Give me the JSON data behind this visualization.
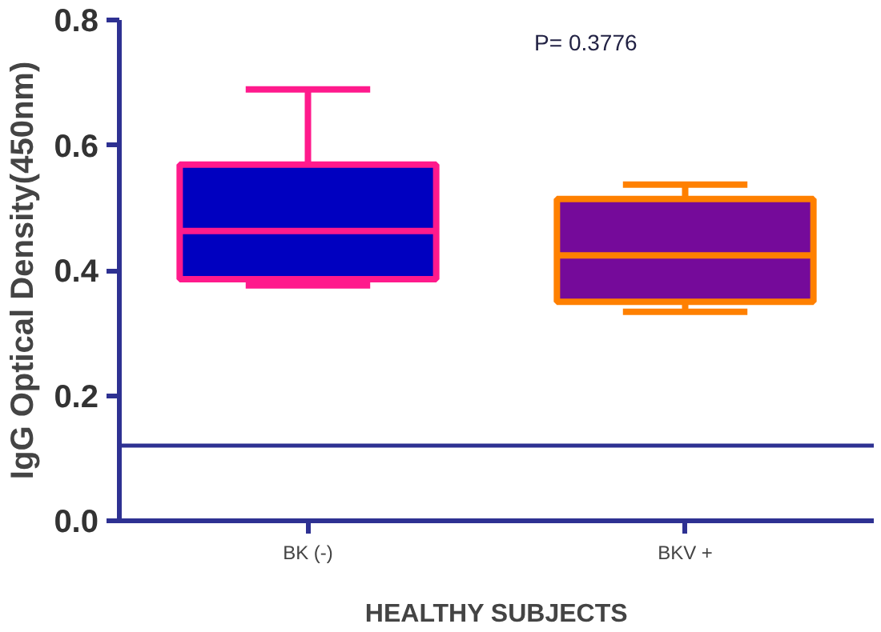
{
  "chart_data": {
    "type": "box",
    "xlabel": "HEALTHY SUBJECTS",
    "ylabel": "IgG Optical Density(450nm)",
    "categories": [
      "BK (-)",
      "BKV +"
    ],
    "series": [
      {
        "color": "#ff1a8c",
        "colors": [
          "#0000c0",
          null
        ],
        "boxes": [
          {
            "low": 0.376,
            "q1": 0.386,
            "median": 0.463,
            "q3": 0.569,
            "high": 0.689
          },
          null
        ]
      },
      {
        "color": "#ff8000",
        "colors": [
          null,
          "#750a9a"
        ],
        "boxes": [
          null,
          {
            "low": 0.334,
            "q1": 0.35,
            "median": 0.424,
            "q3": 0.514,
            "high": 0.537
          }
        ]
      }
    ],
    "ylim": [
      0,
      0.8
    ],
    "yticks": [
      {
        "value": 0,
        "label": "0.0"
      },
      0.2,
      0.4,
      0.6,
      0.8
    ],
    "ref_lines": [
      {
        "axis": "y",
        "value": 0.12,
        "color": "#2e3192"
      }
    ],
    "annotations": [
      "P=  0.3776"
    ],
    "grid": false
  }
}
